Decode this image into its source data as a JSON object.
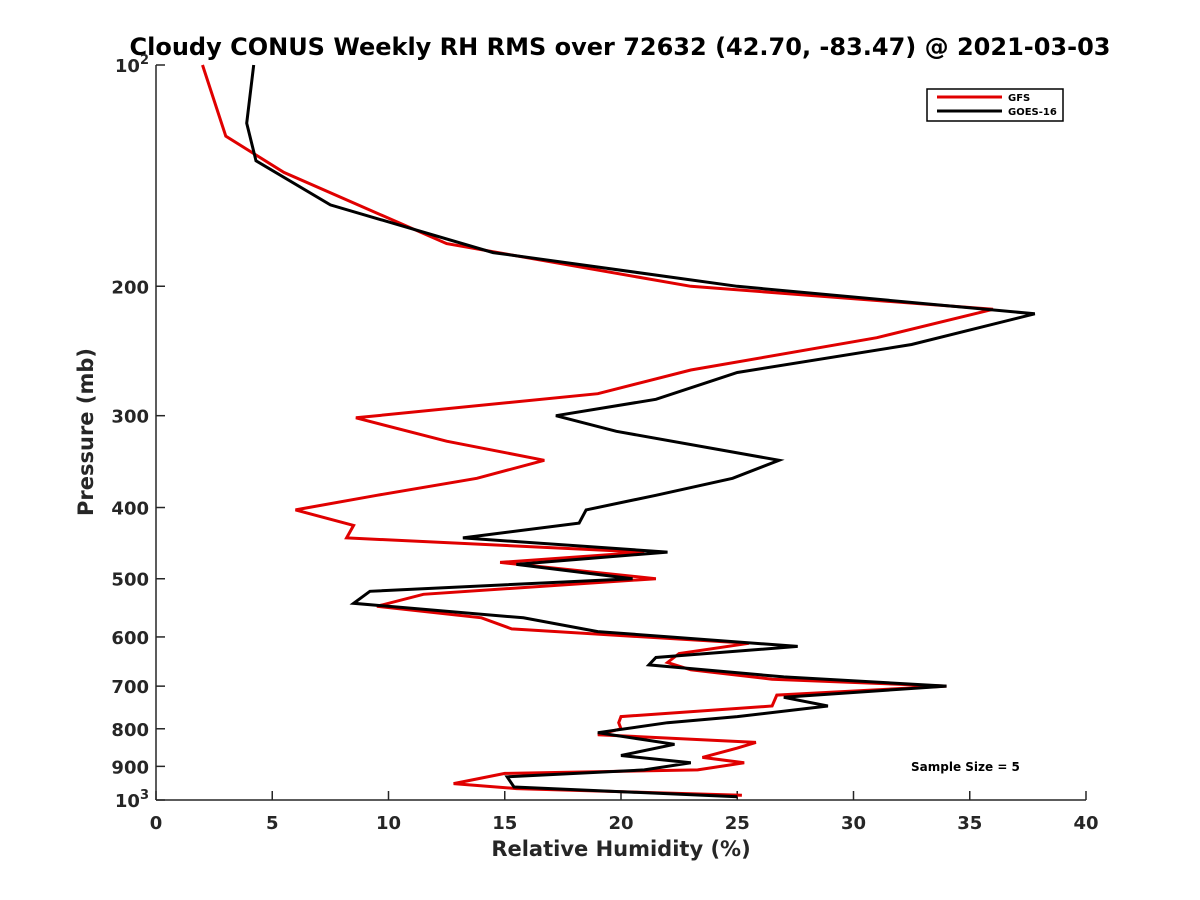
{
  "chart_data": {
    "type": "line",
    "title": "Cloudy CONUS Weekly RH RMS over 72632 (42.70, -83.47) @ 2021-03-03",
    "xlabel": "Relative Humidity (%)",
    "ylabel": "Pressure (mb)",
    "xlim": [
      0,
      40
    ],
    "ylim": [
      100,
      1000
    ],
    "y_scale": "log",
    "y_reversed": true,
    "grid": false,
    "legend_location": "top-right",
    "x_ticks": [
      "0",
      "5",
      "10",
      "15",
      "20",
      "25",
      "30",
      "35",
      "40"
    ],
    "y_ticks": [
      {
        "value": 100,
        "base": "10",
        "exp": "2"
      },
      {
        "value": 200,
        "label": "200"
      },
      {
        "value": 300,
        "label": "300"
      },
      {
        "value": 400,
        "label": "400"
      },
      {
        "value": 500,
        "label": "500"
      },
      {
        "value": 600,
        "label": "600"
      },
      {
        "value": 700,
        "label": "700"
      },
      {
        "value": 800,
        "label": "800"
      },
      {
        "value": 900,
        "label": "900"
      },
      {
        "value": 1000,
        "base": "10",
        "exp": "3"
      }
    ],
    "annotation": "Sample Size = 5",
    "series": [
      {
        "name": "GFS",
        "color": "#e00000",
        "points": [
          [
            2.0,
            100
          ],
          [
            3.0,
            125
          ],
          [
            5.5,
            140
          ],
          [
            12.5,
            175
          ],
          [
            23.0,
            200
          ],
          [
            36.0,
            215
          ],
          [
            31.0,
            235
          ],
          [
            23.0,
            260
          ],
          [
            19.0,
            280
          ],
          [
            8.6,
            302
          ],
          [
            12.5,
            325
          ],
          [
            16.7,
            345
          ],
          [
            13.8,
            365
          ],
          [
            9.5,
            385
          ],
          [
            6.0,
            403
          ],
          [
            8.5,
            423
          ],
          [
            8.2,
            440
          ],
          [
            21.0,
            460
          ],
          [
            14.8,
            475
          ],
          [
            21.5,
            500
          ],
          [
            11.5,
            525
          ],
          [
            9.5,
            545
          ],
          [
            14.0,
            565
          ],
          [
            15.3,
            585
          ],
          [
            25.5,
            612
          ],
          [
            22.5,
            632
          ],
          [
            22.0,
            650
          ],
          [
            23.0,
            665
          ],
          [
            26.5,
            685
          ],
          [
            34.0,
            700
          ],
          [
            26.7,
            720
          ],
          [
            26.5,
            745
          ],
          [
            20.0,
            770
          ],
          [
            19.9,
            785
          ],
          [
            20.0,
            800
          ],
          [
            19.0,
            815
          ],
          [
            25.8,
            835
          ],
          [
            25.0,
            850
          ],
          [
            23.5,
            875
          ],
          [
            25.3,
            890
          ],
          [
            23.3,
            910
          ],
          [
            15.0,
            920
          ],
          [
            12.8,
            950
          ],
          [
            15.5,
            965
          ],
          [
            25.2,
            985
          ]
        ]
      },
      {
        "name": "GOES-16",
        "color": "#000000",
        "points": [
          [
            4.2,
            100
          ],
          [
            3.9,
            120
          ],
          [
            4.3,
            135
          ],
          [
            7.5,
            155
          ],
          [
            14.5,
            180
          ],
          [
            25.0,
            200
          ],
          [
            37.8,
            218
          ],
          [
            32.5,
            240
          ],
          [
            25.0,
            262
          ],
          [
            21.5,
            285
          ],
          [
            17.2,
            300
          ],
          [
            19.8,
            315
          ],
          [
            26.8,
            345
          ],
          [
            24.8,
            365
          ],
          [
            21.5,
            385
          ],
          [
            18.5,
            403
          ],
          [
            18.2,
            420
          ],
          [
            13.2,
            440
          ],
          [
            22.0,
            460
          ],
          [
            15.5,
            478
          ],
          [
            20.5,
            500
          ],
          [
            9.2,
            520
          ],
          [
            8.5,
            540
          ],
          [
            15.8,
            565
          ],
          [
            19.0,
            590
          ],
          [
            27.6,
            618
          ],
          [
            21.5,
            640
          ],
          [
            21.2,
            655
          ],
          [
            27.0,
            680
          ],
          [
            34.0,
            700
          ],
          [
            27.0,
            725
          ],
          [
            28.9,
            745
          ],
          [
            25.0,
            770
          ],
          [
            22.0,
            785
          ],
          [
            19.0,
            810
          ],
          [
            22.3,
            840
          ],
          [
            20.0,
            870
          ],
          [
            23.0,
            890
          ],
          [
            21.0,
            910
          ],
          [
            15.1,
            930
          ],
          [
            15.4,
            960
          ],
          [
            25.0,
            990
          ]
        ]
      }
    ]
  }
}
